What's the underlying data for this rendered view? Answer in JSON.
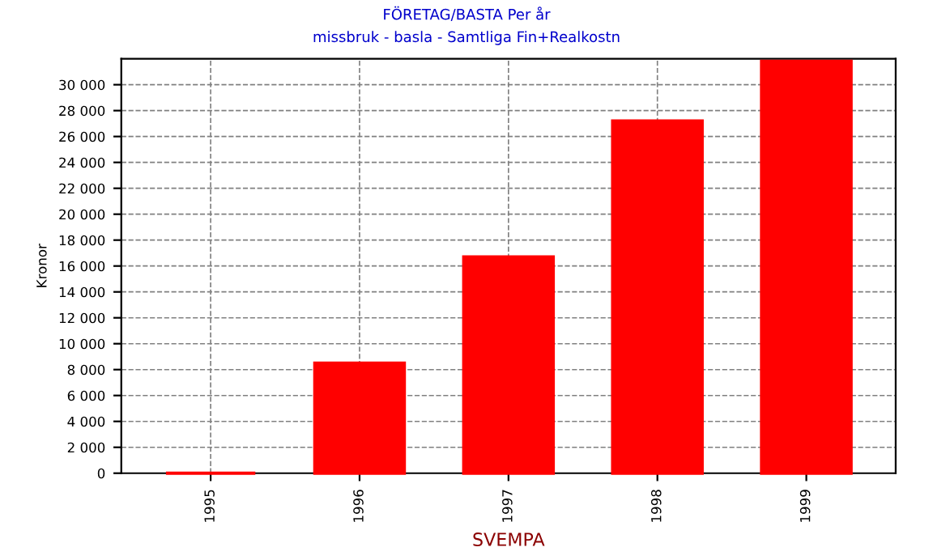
{
  "chart_data": {
    "type": "bar",
    "title": "FÖRETAG/BASTA Per år",
    "subtitle": "missbruk - basla - Samtliga Fin+Realkostn",
    "xlabel": "SVEMPA",
    "ylabel": "Kronor",
    "categories": [
      "1995",
      "1996",
      "1997",
      "1998",
      "1999"
    ],
    "values": [
      0,
      8500,
      16700,
      27200,
      31800
    ],
    "color": "#ff0000",
    "ylim": [
      0,
      32000
    ],
    "yticks": [
      0,
      {
        "value": 2000,
        "label": "2 000"
      },
      {
        "value": 4000,
        "label": "4 000"
      },
      {
        "value": 6000,
        "label": "6 000"
      },
      {
        "value": 8000,
        "label": "8 000"
      },
      {
        "value": 10000,
        "label": "10 000"
      },
      {
        "value": 12000,
        "label": "12 000"
      },
      {
        "value": 14000,
        "label": "14 000"
      },
      {
        "value": 16000,
        "label": "16 000"
      },
      {
        "value": 18000,
        "label": "18 000"
      },
      {
        "value": 20000,
        "label": "20 000"
      },
      {
        "value": 22000,
        "label": "22 000"
      },
      {
        "value": 24000,
        "label": "24 000"
      },
      {
        "value": 26000,
        "label": "26 000"
      },
      {
        "value": 28000,
        "label": "28 000"
      },
      {
        "value": 30000,
        "label": "30 000"
      }
    ],
    "grid": true
  }
}
